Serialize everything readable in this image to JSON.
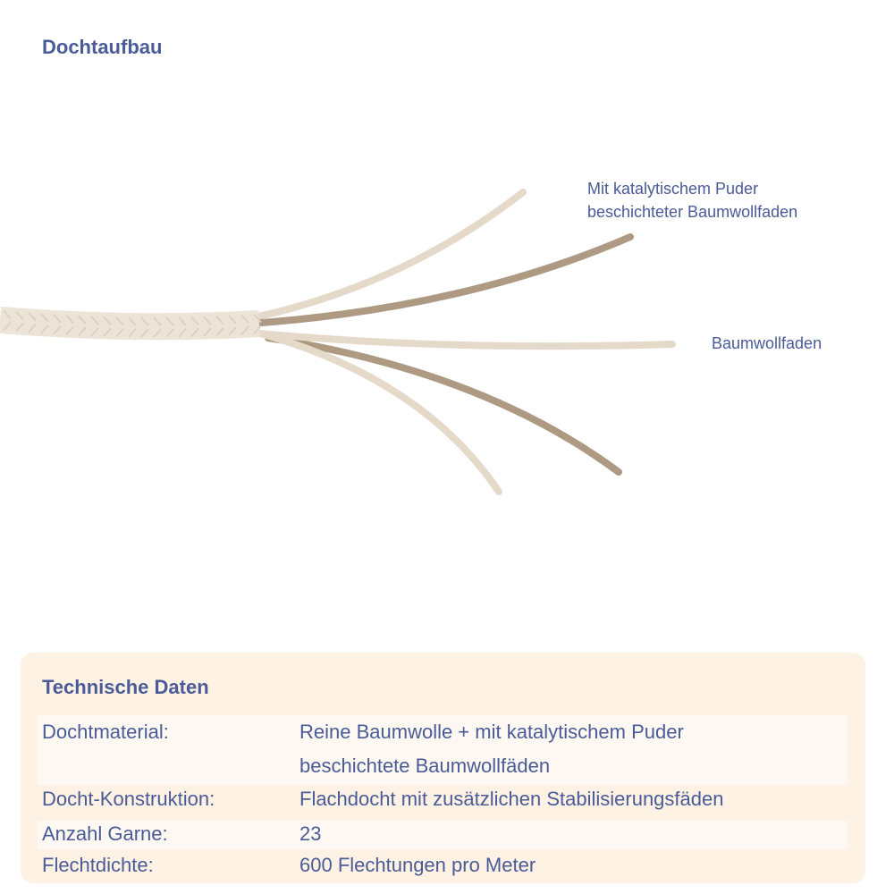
{
  "title": "Dochtaufbau",
  "labels": {
    "coated_thread": [
      "Mit katalytischem Puder",
      "beschichteter Baumwollfaden"
    ],
    "cotton_thread": "Baumwollfaden"
  },
  "colors": {
    "text": "#4a5b98",
    "light_thread": "#e5d9ca",
    "dark_thread": "#ae9a82",
    "panel": "#fdf2e4"
  },
  "specs": {
    "title": "Technische Daten",
    "rows": [
      {
        "key": "Dochtmaterial:",
        "value": [
          "Reine Baumwolle + mit katalytischem Puder",
          "beschichtete Baumwollfäden"
        ]
      },
      {
        "key": "Docht-Konstruktion:",
        "value": [
          "Flachdocht mit zusätzlichen Stabilisierungsfäden"
        ]
      },
      {
        "key": "Anzahl Garne:",
        "value": [
          "23"
        ]
      },
      {
        "key": "Flechtdichte:",
        "value": [
          "600 Flechtungen pro Meter"
        ]
      }
    ]
  }
}
